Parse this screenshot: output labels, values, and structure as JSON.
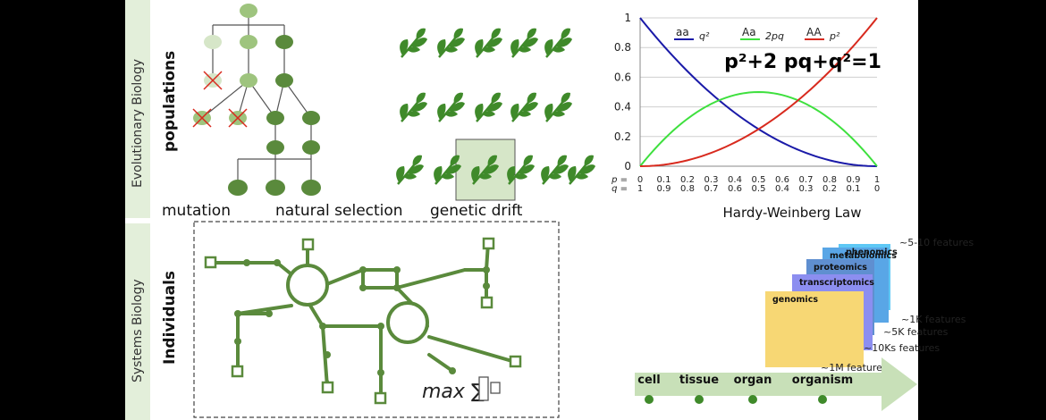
{
  "rows": {
    "top_label": "Evolutionary Biology",
    "top_sublabel": "populations",
    "bottom_label": "Systems Biology",
    "bottom_sublabel": "Individuals"
  },
  "captions": {
    "mutation": "mutation",
    "selection": "natural selection",
    "drift": "genetic drift"
  },
  "colors": {
    "dark_green": "#5a8a3c",
    "mid_green": "#9ec47e",
    "light_green": "#d6e6c8",
    "aa_line": "#1a1aa8",
    "Aa_line": "#3ee03e",
    "AA_line": "#d82a1e",
    "side_bg": "#e3efda"
  },
  "network": {
    "formula": "max ∑"
  },
  "chart_data": {
    "type": "line",
    "title": "Hardy-Weinberg Law",
    "equation": "p²+2 pq+q²=1",
    "legend": [
      {
        "label": "aa",
        "term": "q²",
        "color": "#1a1aa8"
      },
      {
        "label": "Aa",
        "term": "2pq",
        "color": "#3ee03e"
      },
      {
        "label": "AA",
        "term": "p²",
        "color": "#d82a1e"
      }
    ],
    "x_ticks_p": [
      "0",
      "0.1",
      "0.2",
      "0.3",
      "0.4",
      "0.5",
      "0.6",
      "0.7",
      "0.8",
      "0.9",
      "1"
    ],
    "x_ticks_q": [
      "1",
      "0.9",
      "0.8",
      "0.7",
      "0.6",
      "0.5",
      "0.4",
      "0.3",
      "0.2",
      "0.1",
      "0"
    ],
    "x_row_labels": [
      "p",
      "q"
    ],
    "y_ticks": [
      "0",
      "0.2",
      "0.4",
      "0.6",
      "0.8",
      "1"
    ],
    "x": [
      0,
      0.1,
      0.2,
      0.3,
      0.4,
      0.5,
      0.6,
      0.7,
      0.8,
      0.9,
      1
    ],
    "series": [
      {
        "name": "aa",
        "values": [
          1,
          0.81,
          0.64,
          0.49,
          0.36,
          0.25,
          0.16,
          0.09,
          0.04,
          0.01,
          0
        ]
      },
      {
        "name": "Aa",
        "values": [
          0,
          0.18,
          0.32,
          0.42,
          0.48,
          0.5,
          0.48,
          0.42,
          0.32,
          0.18,
          0
        ]
      },
      {
        "name": "AA",
        "values": [
          0,
          0.01,
          0.04,
          0.09,
          0.16,
          0.25,
          0.36,
          0.49,
          0.64,
          0.81,
          1
        ]
      }
    ],
    "ylim": [
      0,
      1
    ],
    "grid": true
  },
  "omics": {
    "layers": [
      {
        "name": "phenomics",
        "features": "~5-10 features",
        "color": "#5ec8f5"
      },
      {
        "name": "metabolomics",
        "features": "~1K features",
        "color": "#59a6e6"
      },
      {
        "name": "proteomics",
        "features": "~5K features",
        "color": "#5f8fd0"
      },
      {
        "name": "transcriptomics",
        "features": "~10Ks features",
        "color": "#8c8ef0"
      },
      {
        "name": "genomics",
        "features": "~1M features",
        "color": "#f7d774"
      }
    ],
    "scale": [
      "cell",
      "tissue",
      "organ",
      "organism"
    ]
  }
}
